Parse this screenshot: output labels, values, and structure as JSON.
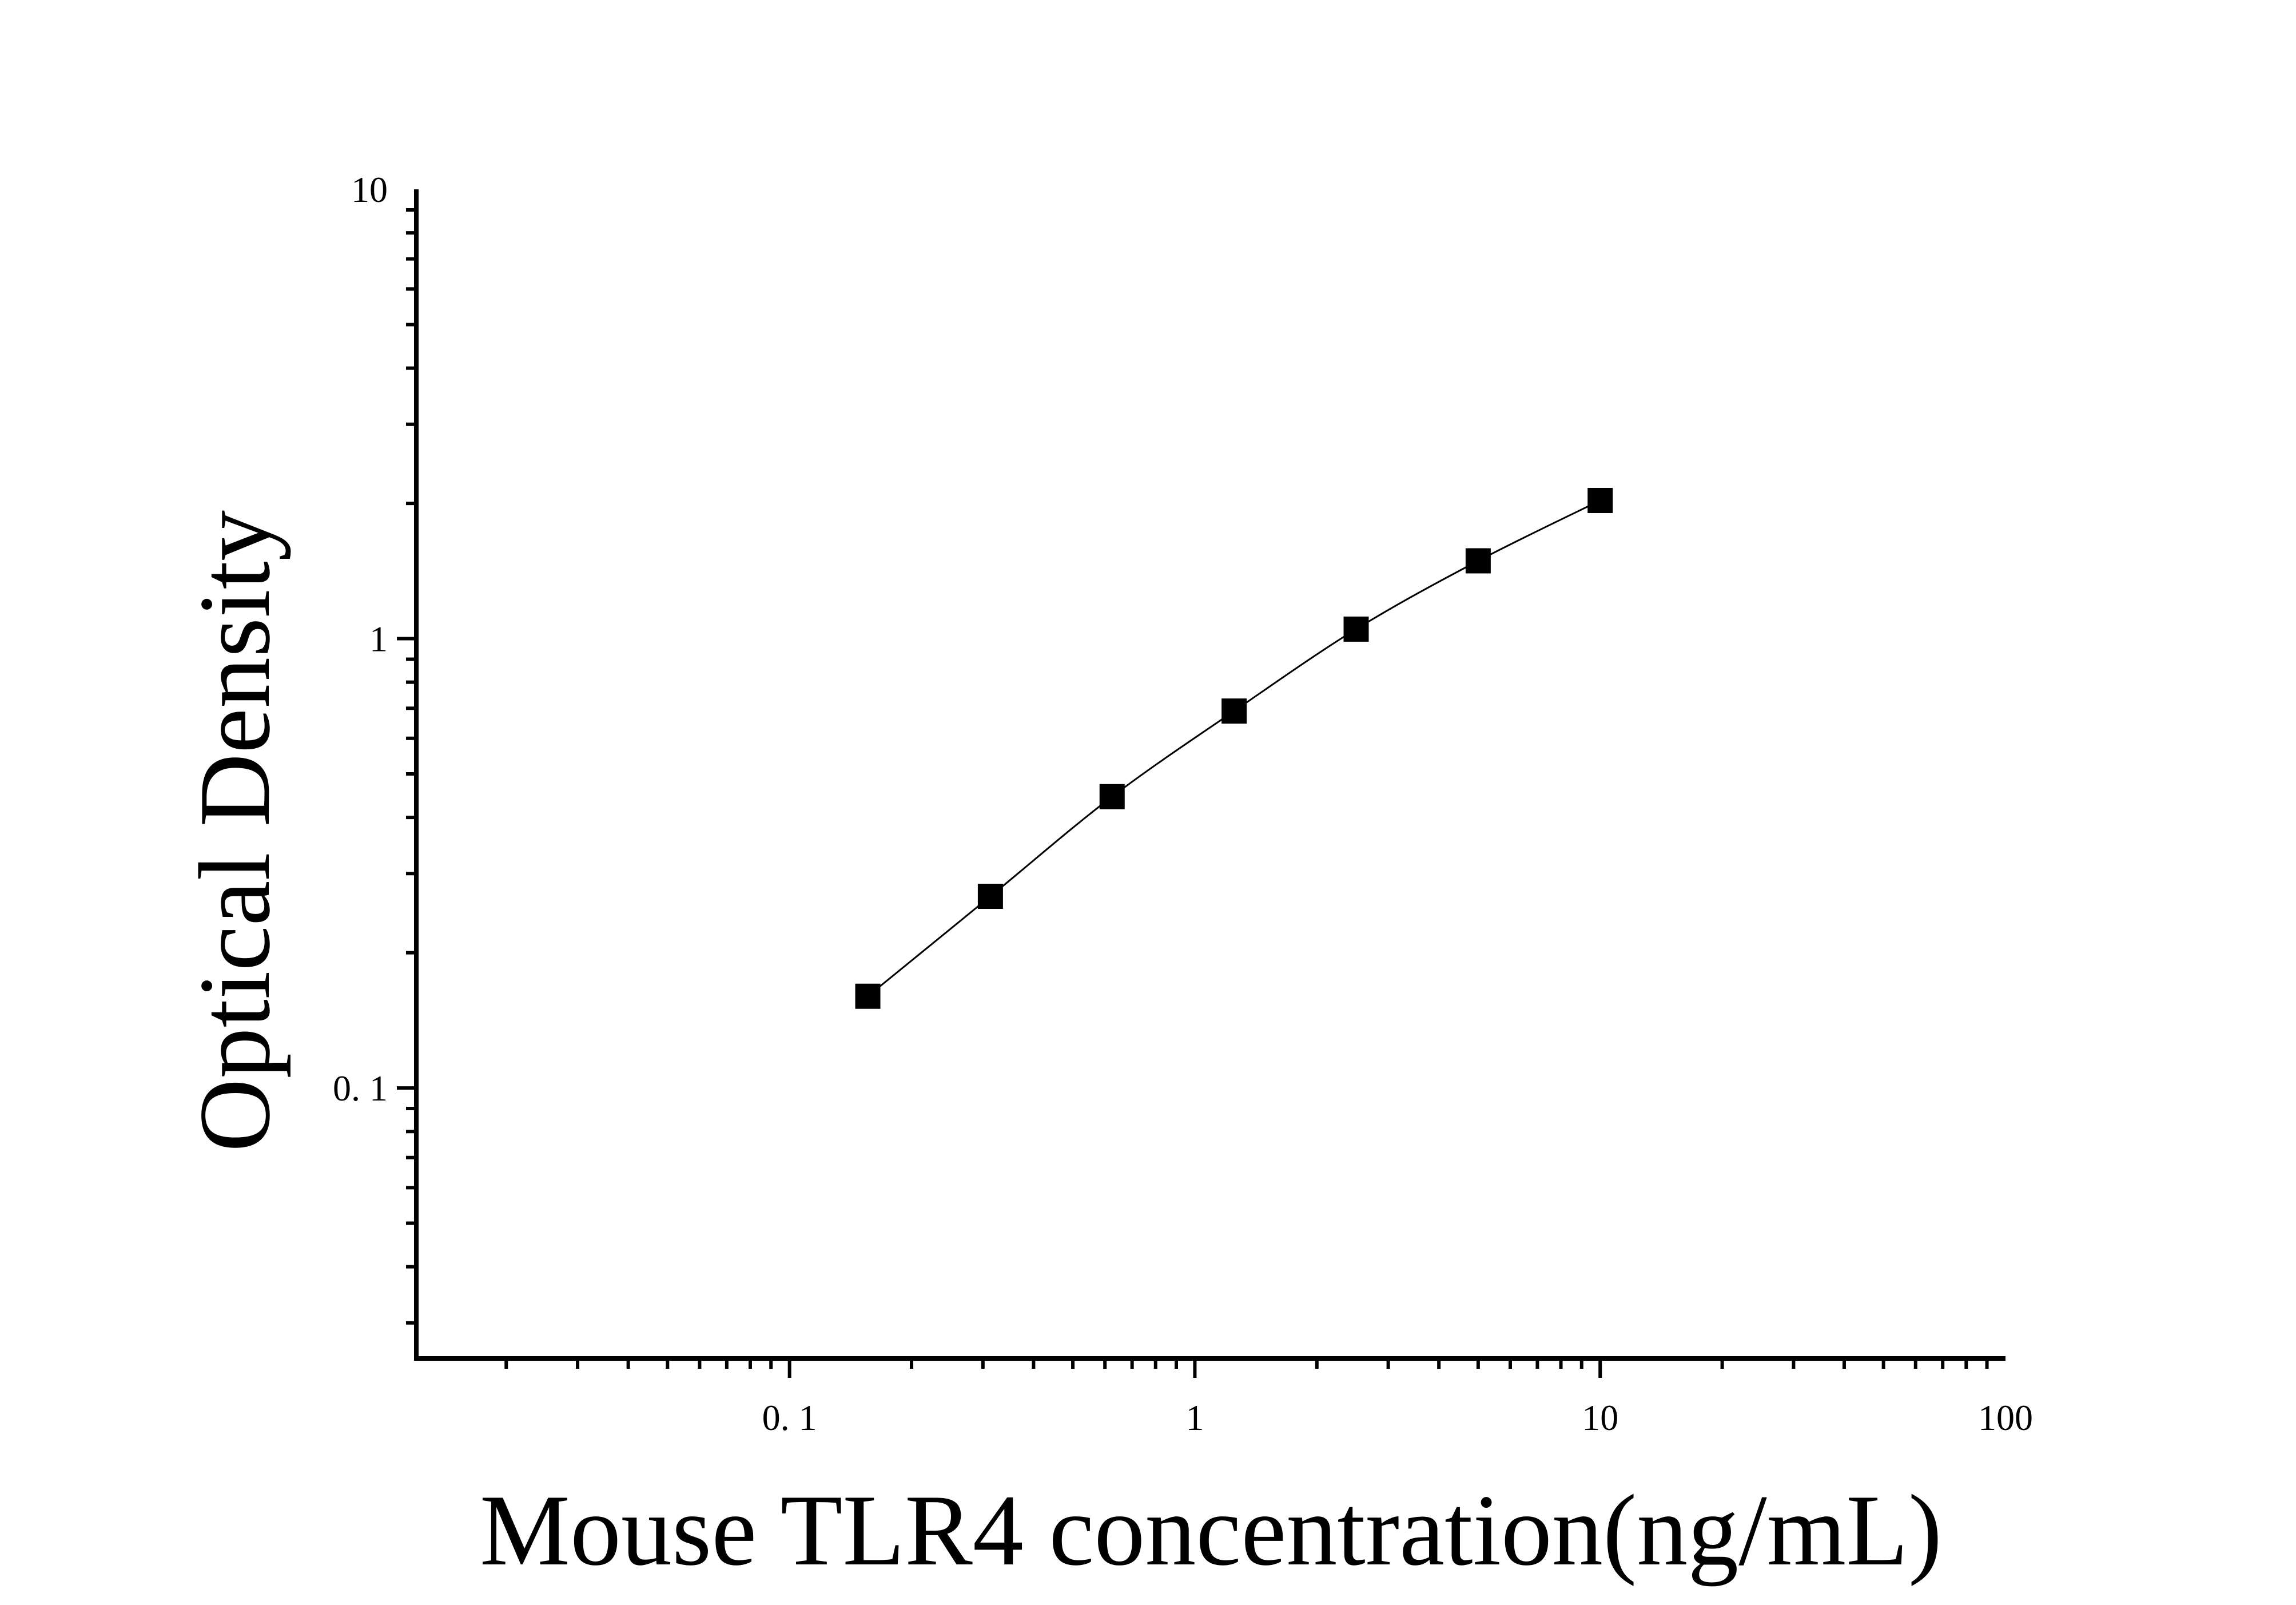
{
  "chart_data": {
    "type": "scatter",
    "title": "",
    "xlabel": "Mouse TLR4 concentration(ng/mL)",
    "ylabel": "Optical Density",
    "x_scale": "log",
    "y_scale": "log",
    "xlim": [
      0.012,
      100
    ],
    "ylim": [
      0.025,
      10
    ],
    "x_ticks": [
      {
        "value": 0.1,
        "label": "0. 1"
      },
      {
        "value": 1,
        "label": "1"
      },
      {
        "value": 10,
        "label": "10"
      },
      {
        "value": 100,
        "label": "100"
      }
    ],
    "y_ticks": [
      {
        "value": 0.1,
        "label": "0. 1"
      },
      {
        "value": 1,
        "label": "1"
      },
      {
        "value": 10,
        "label": "10"
      }
    ],
    "grid": false,
    "legend": "none",
    "series": [
      {
        "marker": "square",
        "color": "#000000",
        "points": [
          {
            "x": 0.156,
            "y": 0.16
          },
          {
            "x": 0.313,
            "y": 0.267
          },
          {
            "x": 0.625,
            "y": 0.445
          },
          {
            "x": 1.25,
            "y": 0.69
          },
          {
            "x": 2.5,
            "y": 1.05
          },
          {
            "x": 5,
            "y": 1.49
          },
          {
            "x": 10,
            "y": 2.03
          }
        ]
      }
    ],
    "fit_curve": true
  }
}
